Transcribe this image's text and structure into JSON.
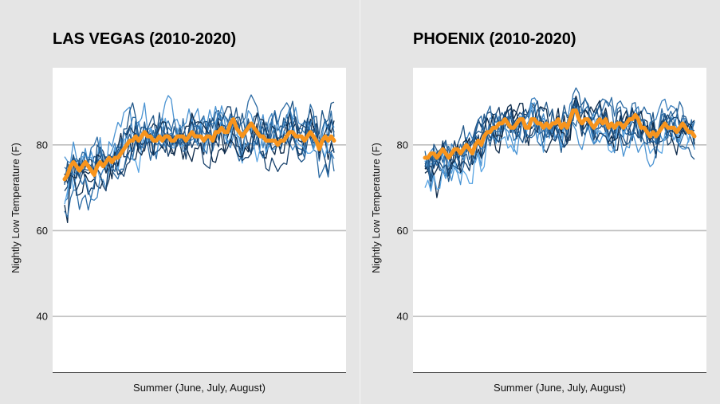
{
  "colors": {
    "background": "#e5e5e5",
    "plot_background": "#ffffff",
    "gridline": "#bdbdbd",
    "average_line": "#f7941d",
    "year_lines": [
      "#0d2a4a",
      "#17406b",
      "#1f5587",
      "#2b6aa3",
      "#3a7fbd",
      "#4a93d2",
      "#5aa5e3"
    ]
  },
  "chart_data": [
    {
      "type": "line",
      "title": "LAS VEGAS (2010-2020)",
      "xlabel": "Summer (June, July, August)",
      "ylabel": "Nightly Low Temperature (F)",
      "yticks": [
        40,
        60,
        80
      ],
      "ylim": [
        27,
        98
      ],
      "days": 92,
      "seed": 11,
      "years": 11,
      "year_noise": 3.8,
      "average": [
        72,
        73,
        75,
        76,
        75,
        74,
        75,
        76,
        75,
        74,
        73,
        75,
        76,
        75,
        76,
        77,
        76,
        77,
        77,
        78,
        79,
        80,
        81,
        81,
        82,
        81,
        82,
        83,
        82,
        82,
        81,
        81,
        82,
        81,
        82,
        82,
        81,
        81,
        82,
        82,
        82,
        81,
        82,
        83,
        82,
        82,
        82,
        81,
        82,
        82,
        81,
        83,
        83,
        84,
        83,
        83,
        85,
        86,
        84,
        83,
        82,
        83,
        84,
        85,
        84,
        83,
        82,
        82,
        81,
        81,
        81,
        81,
        80,
        81,
        81,
        82,
        83,
        83,
        82,
        82,
        82,
        81,
        82,
        83,
        82,
        81,
        79,
        81,
        82,
        81,
        82,
        81
      ]
    },
    {
      "type": "line",
      "title": "PHOENIX (2010-2020)",
      "xlabel": "Summer (June, July, August)",
      "ylabel": "Nightly Low Temperature (F)",
      "yticks": [
        40,
        60,
        80
      ],
      "ylim": [
        27,
        98
      ],
      "days": 92,
      "seed": 29,
      "years": 11,
      "year_noise": 3.4,
      "average": [
        77,
        77,
        78,
        78,
        77,
        78,
        79,
        78,
        77,
        78,
        79,
        79,
        78,
        79,
        80,
        79,
        78,
        80,
        81,
        80,
        82,
        83,
        83,
        84,
        84,
        85,
        85,
        86,
        85,
        84,
        84,
        85,
        86,
        86,
        84,
        84,
        86,
        86,
        85,
        85,
        84,
        85,
        84,
        85,
        85,
        86,
        84,
        85,
        84,
        86,
        88,
        88,
        86,
        85,
        86,
        86,
        85,
        84,
        85,
        86,
        85,
        86,
        84,
        85,
        84,
        85,
        85,
        84,
        85,
        86,
        86,
        87,
        86,
        84,
        84,
        83,
        82,
        83,
        82,
        83,
        84,
        85,
        84,
        84,
        84,
        83,
        84,
        85,
        84,
        83,
        83,
        82
      ]
    }
  ]
}
